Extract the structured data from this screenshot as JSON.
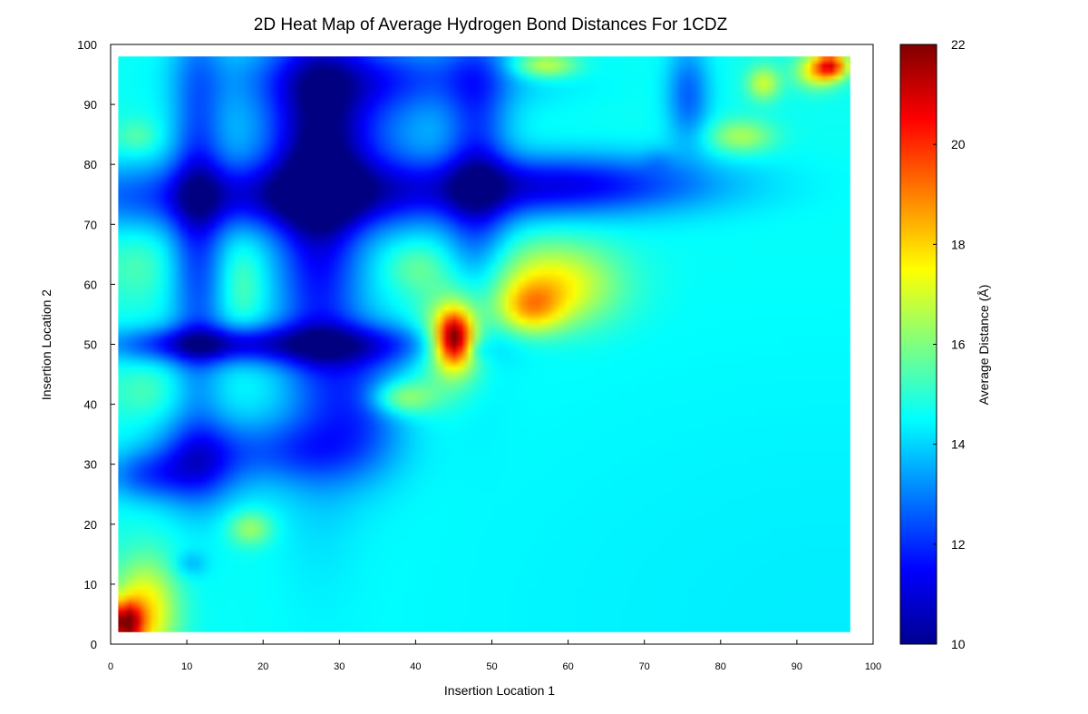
{
  "chart_data": {
    "type": "heatmap",
    "title": "2D Heat Map of Average Hydrogen Bond Distances For 1CDZ",
    "xlabel": "Insertion Location 1",
    "ylabel": "Insertion Location 2",
    "xlim": [
      0,
      100
    ],
    "ylim": [
      0,
      100
    ],
    "xticks": [
      "0",
      "10",
      "20",
      "30",
      "40",
      "50",
      "60",
      "70",
      "80",
      "90",
      "100"
    ],
    "yticks": [
      "0",
      "10",
      "20",
      "30",
      "40",
      "50",
      "60",
      "70",
      "80",
      "90",
      "100"
    ],
    "data_x_range": [
      1,
      97
    ],
    "data_y_range": [
      2,
      98
    ],
    "colorbar": {
      "label": "Average Distance (Å)",
      "range": [
        10,
        22
      ],
      "ticks": [
        "10",
        "12",
        "14",
        "16",
        "18",
        "20",
        "22"
      ],
      "colormap": "jet"
    },
    "background_value": 14.7,
    "features": [
      {
        "x": 97,
        "y": 2,
        "sx": 55,
        "sy": 46,
        "value": 14.3,
        "note": "lower-right gradient"
      },
      {
        "x": 20,
        "y": 75,
        "sx": 22,
        "sy": 4,
        "value": 11.8,
        "note": "horizontal band y~75"
      },
      {
        "x": 60,
        "y": 77,
        "sx": 14,
        "sy": 3.5,
        "value": 11.8
      },
      {
        "x": 28,
        "y": 50,
        "sx": 13,
        "sy": 2.5,
        "value": 12.0,
        "note": "horizontal band y~50"
      },
      {
        "x": 10,
        "y": 50,
        "sx": 8,
        "sy": 2,
        "value": 12.4
      },
      {
        "x": 11,
        "y": 72,
        "sx": 2.5,
        "sy": 24,
        "value": 12.2,
        "note": "vertical band x~11"
      },
      {
        "x": 27,
        "y": 70,
        "sx": 4,
        "sy": 26,
        "value": 11.7,
        "note": "vertical band x~27"
      },
      {
        "x": 48,
        "y": 80,
        "sx": 3,
        "sy": 18,
        "value": 12.3,
        "note": "vertical band x~48"
      },
      {
        "x": 29,
        "y": 85,
        "sx": 8,
        "sy": 10,
        "value": 12.2
      },
      {
        "x": 11,
        "y": 30,
        "sx": 4,
        "sy": 5,
        "value": 12.3
      },
      {
        "x": 4,
        "y": 28,
        "sx": 4,
        "sy": 3,
        "value": 12.8
      },
      {
        "x": 22,
        "y": 32,
        "sx": 8,
        "sy": 4,
        "value": 12.9
      },
      {
        "x": 33,
        "y": 40,
        "sx": 4,
        "sy": 8,
        "value": 12.8
      },
      {
        "x": 76,
        "y": 92,
        "sx": 2,
        "sy": 6,
        "value": 12.7
      },
      {
        "x": 35,
        "y": 95,
        "sx": 14,
        "sy": 4,
        "value": 12.8
      },
      {
        "x": 4,
        "y": 5,
        "sx": 3,
        "sy": 6,
        "value": 18.0,
        "note": "lower-left hot spot"
      },
      {
        "x": 1.5,
        "y": 3,
        "sx": 1.5,
        "sy": 2.5,
        "value": 20.5
      },
      {
        "x": 45,
        "y": 51,
        "sx": 1.6,
        "sy": 3,
        "value": 20.3,
        "note": "hot spot near (45,51)"
      },
      {
        "x": 45,
        "y": 51,
        "sx": 3,
        "sy": 5.5,
        "value": 18.0
      },
      {
        "x": 38,
        "y": 41,
        "sx": 3,
        "sy": 2,
        "value": 17.0
      },
      {
        "x": 58,
        "y": 60,
        "sx": 6,
        "sy": 5,
        "value": 17.8,
        "note": "ridge near (58,60)"
      },
      {
        "x": 55,
        "y": 56,
        "sx": 3,
        "sy": 3,
        "value": 17.2
      },
      {
        "x": 57,
        "y": 97,
        "sx": 3,
        "sy": 1.5,
        "value": 17.2
      },
      {
        "x": 95,
        "y": 97,
        "sx": 1.5,
        "sy": 1.5,
        "value": 19.5,
        "note": "top-right hot spot"
      },
      {
        "x": 93,
        "y": 96,
        "sx": 2,
        "sy": 2,
        "value": 17.5
      },
      {
        "x": 86,
        "y": 94,
        "sx": 1.5,
        "sy": 2,
        "value": 17.0
      },
      {
        "x": 83,
        "y": 85,
        "sx": 3,
        "sy": 2,
        "value": 16.6
      },
      {
        "x": 18,
        "y": 19,
        "sx": 2,
        "sy": 2,
        "value": 16.5
      },
      {
        "x": 17,
        "y": 60,
        "sx": 2,
        "sy": 5,
        "value": 15.6
      },
      {
        "x": 40,
        "y": 63,
        "sx": 3,
        "sy": 3,
        "value": 15.8
      },
      {
        "x": 3,
        "y": 85,
        "sx": 2,
        "sy": 2,
        "value": 15.6
      },
      {
        "x": 3,
        "y": 63,
        "sx": 3,
        "sy": 4,
        "value": 15.4
      },
      {
        "x": 4,
        "y": 42,
        "sx": 3,
        "sy": 3,
        "value": 15.4
      },
      {
        "x": 10,
        "y": 13,
        "sx": 1.5,
        "sy": 1.5,
        "value": 13.8
      },
      {
        "x": 72,
        "y": 81,
        "sx": 1.5,
        "sy": 1.5,
        "value": 14.2
      },
      {
        "x": 48,
        "y": 49,
        "sx": 1,
        "sy": 1,
        "value": 14.0
      }
    ]
  }
}
